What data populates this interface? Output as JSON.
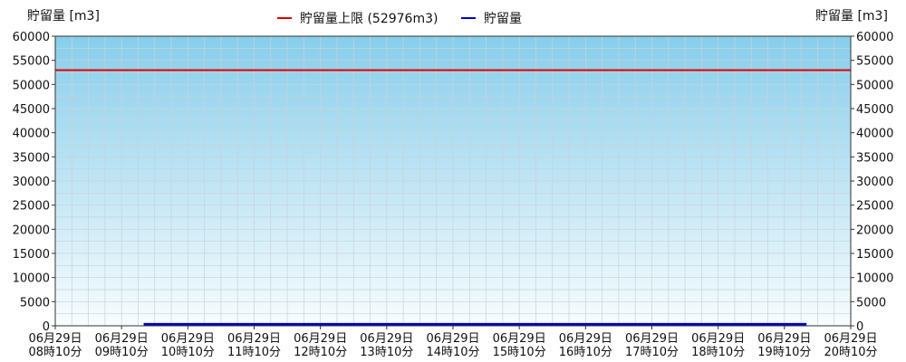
{
  "chart_data": {
    "type": "line",
    "ylabel_left": "貯留量 [m3]",
    "ylabel_right": "貯留量 [m3]",
    "ylim": [
      0,
      60000
    ],
    "yticks": [
      0,
      5000,
      10000,
      15000,
      20000,
      25000,
      30000,
      35000,
      40000,
      45000,
      50000,
      55000,
      60000
    ],
    "x_ticks": [
      {
        "date": "06月29日",
        "time": "08時10分"
      },
      {
        "date": "06月29日",
        "time": "09時10分"
      },
      {
        "date": "06月29日",
        "time": "10時10分"
      },
      {
        "date": "06月29日",
        "time": "11時10分"
      },
      {
        "date": "06月29日",
        "time": "12時10分"
      },
      {
        "date": "06月29日",
        "time": "13時10分"
      },
      {
        "date": "06月29日",
        "time": "14時10分"
      },
      {
        "date": "06月29日",
        "time": "15時10分"
      },
      {
        "date": "06月29日",
        "time": "16時10分"
      },
      {
        "date": "06月29日",
        "time": "17時10分"
      },
      {
        "date": "06月29日",
        "time": "18時10分"
      },
      {
        "date": "06月29日",
        "time": "19時10分"
      },
      {
        "date": "06月29日",
        "time": "20時10分"
      }
    ],
    "grid": true,
    "legend_position": "top-center",
    "background_gradient": {
      "top": "#87ceeb",
      "bottom": "#f8fcfe"
    },
    "series": [
      {
        "name": "貯留量上限 (52976m3)",
        "color": "#e00000",
        "type": "constant",
        "value": 52976,
        "x_start": "08時10分",
        "x_end": "20時10分"
      },
      {
        "name": "貯留量",
        "color": "#0000cc",
        "type": "line",
        "value": 300,
        "x_start": "09時30分",
        "x_end": "19時30分"
      }
    ]
  }
}
